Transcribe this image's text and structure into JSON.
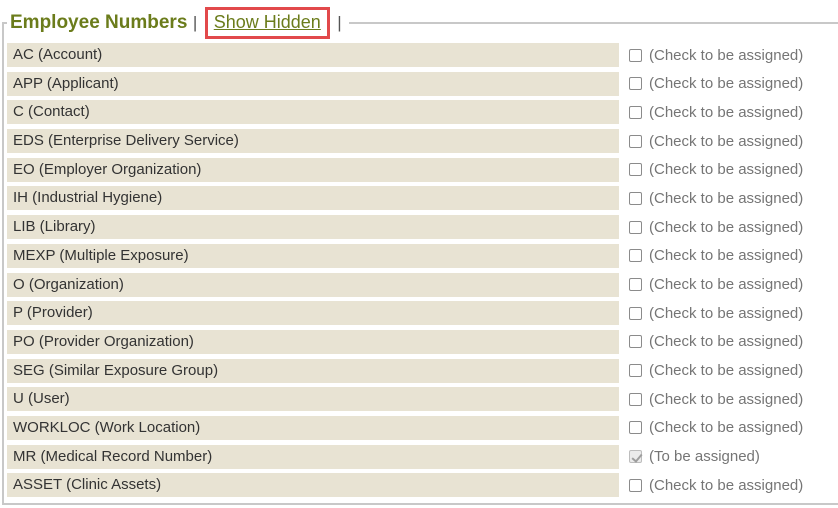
{
  "panel": {
    "title": "Employee Numbers",
    "separator_left": "|",
    "separator_right": "|",
    "show_hidden_label": "Show Hidden"
  },
  "rows": [
    {
      "label": "AC (Account)",
      "note": "(Check to be assigned)",
      "checked": false,
      "disabled": false
    },
    {
      "label": "APP (Applicant)",
      "note": "(Check to be assigned)",
      "checked": false,
      "disabled": false
    },
    {
      "label": "C (Contact)",
      "note": "(Check to be assigned)",
      "checked": false,
      "disabled": false
    },
    {
      "label": "EDS (Enterprise Delivery Service)",
      "note": "(Check to be assigned)",
      "checked": false,
      "disabled": false
    },
    {
      "label": "EO (Employer Organization)",
      "note": "(Check to be assigned)",
      "checked": false,
      "disabled": false
    },
    {
      "label": "IH (Industrial Hygiene)",
      "note": "(Check to be assigned)",
      "checked": false,
      "disabled": false
    },
    {
      "label": "LIB (Library)",
      "note": "(Check to be assigned)",
      "checked": false,
      "disabled": false
    },
    {
      "label": "MEXP (Multiple Exposure)",
      "note": "(Check to be assigned)",
      "checked": false,
      "disabled": false
    },
    {
      "label": "O (Organization)",
      "note": "(Check to be assigned)",
      "checked": false,
      "disabled": false
    },
    {
      "label": "P (Provider)",
      "note": "(Check to be assigned)",
      "checked": false,
      "disabled": false
    },
    {
      "label": "PO (Provider Organization)",
      "note": "(Check to be assigned)",
      "checked": false,
      "disabled": false
    },
    {
      "label": "SEG (Similar Exposure Group)",
      "note": "(Check to be assigned)",
      "checked": false,
      "disabled": false
    },
    {
      "label": "U (User)",
      "note": "(Check to be assigned)",
      "checked": false,
      "disabled": false
    },
    {
      "label": "WORKLOC (Work Location)",
      "note": "(Check to be assigned)",
      "checked": false,
      "disabled": false
    },
    {
      "label": "MR (Medical Record Number)",
      "note": "(To be assigned)",
      "checked": true,
      "disabled": true
    },
    {
      "label": "ASSET (Clinic Assets)",
      "note": "(Check to be assigned)",
      "checked": false,
      "disabled": false
    }
  ],
  "colors": {
    "title_green": "#6b7c1b",
    "row_bg": "#e8e3d3",
    "annotation_red": "#e2494b",
    "note_gray": "#757575",
    "border_gray": "#c8c8c8",
    "label_color": "#333333"
  }
}
